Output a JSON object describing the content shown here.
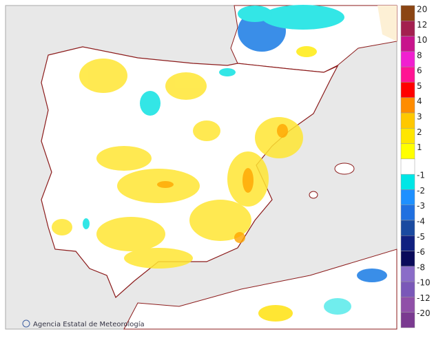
{
  "legend": {
    "items": [
      {
        "value": 20,
        "color": "#8b4513"
      },
      {
        "value": 12,
        "color": "#a3204f"
      },
      {
        "value": 10,
        "color": "#c8148c"
      },
      {
        "value": 8,
        "color": "#f020d0"
      },
      {
        "value": 6,
        "color": "#ff1493"
      },
      {
        "value": 5,
        "color": "#ff0000"
      },
      {
        "value": 4,
        "color": "#ff8c00"
      },
      {
        "value": 3,
        "color": "#ffc800"
      },
      {
        "value": 2,
        "color": "#ffe600"
      },
      {
        "value": 1,
        "color": "#ffff00"
      },
      {
        "value": -1,
        "color": "#00e6e6"
      },
      {
        "value": -2,
        "color": "#1e90ff"
      },
      {
        "value": -3,
        "color": "#2070e0"
      },
      {
        "value": -4,
        "color": "#1a4aa0"
      },
      {
        "value": -5,
        "color": "#102080"
      },
      {
        "value": -6,
        "color": "#0a0a5a"
      },
      {
        "value": -8,
        "color": "#8a6cc8"
      },
      {
        "value": -10,
        "color": "#7a58b8"
      },
      {
        "value": -12,
        "color": "#9050a8"
      },
      {
        "value": -20,
        "color": "#7a3a90"
      }
    ]
  },
  "credit": "Agencia Estatal de Meteorología"
}
